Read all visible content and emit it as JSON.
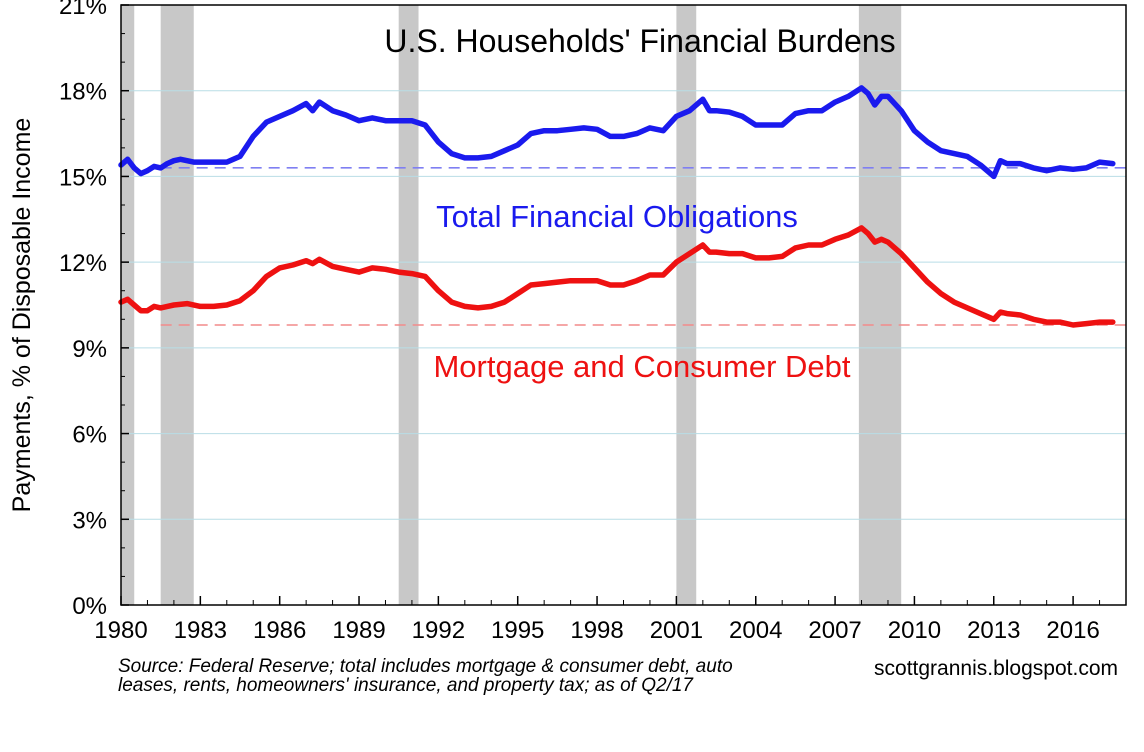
{
  "chart_data": {
    "type": "line",
    "title": "U.S. Households' Financial Burdens",
    "xlabel": "",
    "ylabel": "Payments, % of Disposable Income",
    "xlim": [
      1980,
      2018
    ],
    "ylim": [
      0,
      21
    ],
    "x_ticks": [
      1980,
      1983,
      1986,
      1989,
      1992,
      1995,
      1998,
      2001,
      2004,
      2007,
      2010,
      2013,
      2016
    ],
    "y_ticks": [
      0,
      3,
      6,
      9,
      12,
      15,
      18,
      21
    ],
    "y_tick_labels": [
      "0%",
      "3%",
      "6%",
      "9%",
      "12%",
      "15%",
      "18%",
      "21%"
    ],
    "grid": true,
    "recessions": [
      [
        1980.0,
        1980.5
      ],
      [
        1981.5,
        1982.75
      ],
      [
        1990.5,
        1991.25
      ],
      [
        2001.0,
        2001.75
      ],
      [
        2007.9,
        2009.5
      ]
    ],
    "series": [
      {
        "name": "Total Financial Obligations",
        "color": "#1a1aee",
        "reference_level": 15.3,
        "x": [
          1980.0,
          1980.25,
          1980.5,
          1980.75,
          1981.0,
          1981.25,
          1981.5,
          1981.75,
          1982.0,
          1982.25,
          1982.5,
          1982.75,
          1983.0,
          1983.5,
          1984.0,
          1984.5,
          1985.0,
          1985.5,
          1986.0,
          1986.5,
          1987.0,
          1987.25,
          1987.5,
          1988.0,
          1988.5,
          1989.0,
          1989.5,
          1990.0,
          1990.5,
          1991.0,
          1991.5,
          1992.0,
          1992.5,
          1993.0,
          1993.5,
          1994.0,
          1994.5,
          1995.0,
          1995.5,
          1996.0,
          1996.5,
          1997.0,
          1997.5,
          1998.0,
          1998.5,
          1999.0,
          1999.5,
          2000.0,
          2000.5,
          2001.0,
          2001.5,
          2002.0,
          2002.25,
          2002.5,
          2003.0,
          2003.5,
          2004.0,
          2004.5,
          2005.0,
          2005.5,
          2006.0,
          2006.5,
          2007.0,
          2007.5,
          2008.0,
          2008.25,
          2008.5,
          2008.75,
          2009.0,
          2009.5,
          2010.0,
          2010.5,
          2011.0,
          2011.5,
          2012.0,
          2012.5,
          2013.0,
          2013.25,
          2013.5,
          2014.0,
          2014.5,
          2015.0,
          2015.5,
          2016.0,
          2016.5,
          2017.0,
          2017.5
        ],
        "values": [
          15.4,
          15.6,
          15.3,
          15.1,
          15.2,
          15.35,
          15.3,
          15.45,
          15.55,
          15.6,
          15.55,
          15.5,
          15.5,
          15.5,
          15.5,
          15.7,
          16.4,
          16.9,
          17.1,
          17.3,
          17.55,
          17.3,
          17.6,
          17.3,
          17.15,
          16.95,
          17.05,
          16.95,
          16.95,
          16.95,
          16.8,
          16.2,
          15.8,
          15.65,
          15.65,
          15.7,
          15.9,
          16.1,
          16.5,
          16.6,
          16.6,
          16.65,
          16.7,
          16.65,
          16.4,
          16.4,
          16.5,
          16.7,
          16.6,
          17.1,
          17.3,
          17.7,
          17.3,
          17.3,
          17.25,
          17.1,
          16.8,
          16.8,
          16.8,
          17.2,
          17.3,
          17.3,
          17.6,
          17.8,
          18.1,
          17.9,
          17.5,
          17.8,
          17.8,
          17.3,
          16.6,
          16.2,
          15.9,
          15.8,
          15.7,
          15.4,
          15.0,
          15.55,
          15.45,
          15.45,
          15.3,
          15.2,
          15.3,
          15.25,
          15.3,
          15.5,
          15.45
        ]
      },
      {
        "name": "Mortgage and Consumer Debt",
        "color": "#ee1111",
        "reference_level": 9.8,
        "x": [
          1980.0,
          1980.25,
          1980.5,
          1980.75,
          1981.0,
          1981.25,
          1981.5,
          1981.75,
          1982.0,
          1982.5,
          1983.0,
          1983.5,
          1984.0,
          1984.5,
          1985.0,
          1985.5,
          1986.0,
          1986.5,
          1987.0,
          1987.25,
          1987.5,
          1988.0,
          1988.5,
          1989.0,
          1989.5,
          1990.0,
          1990.5,
          1991.0,
          1991.5,
          1992.0,
          1992.5,
          1993.0,
          1993.5,
          1994.0,
          1994.5,
          1995.0,
          1995.5,
          1996.0,
          1996.5,
          1997.0,
          1997.5,
          1998.0,
          1998.5,
          1999.0,
          1999.5,
          2000.0,
          2000.5,
          2001.0,
          2001.5,
          2002.0,
          2002.25,
          2002.5,
          2003.0,
          2003.5,
          2004.0,
          2004.5,
          2005.0,
          2005.5,
          2006.0,
          2006.5,
          2007.0,
          2007.5,
          2008.0,
          2008.25,
          2008.5,
          2008.75,
          2009.0,
          2009.5,
          2010.0,
          2010.5,
          2011.0,
          2011.5,
          2012.0,
          2012.5,
          2013.0,
          2013.25,
          2013.5,
          2014.0,
          2014.5,
          2015.0,
          2015.5,
          2016.0,
          2016.5,
          2017.0,
          2017.5
        ],
        "values": [
          10.6,
          10.7,
          10.5,
          10.3,
          10.3,
          10.45,
          10.4,
          10.45,
          10.5,
          10.55,
          10.45,
          10.45,
          10.5,
          10.65,
          11.0,
          11.5,
          11.8,
          11.9,
          12.05,
          11.95,
          12.1,
          11.85,
          11.75,
          11.65,
          11.8,
          11.75,
          11.65,
          11.6,
          11.5,
          11.0,
          10.6,
          10.45,
          10.4,
          10.45,
          10.6,
          10.9,
          11.2,
          11.25,
          11.3,
          11.35,
          11.35,
          11.35,
          11.2,
          11.2,
          11.35,
          11.55,
          11.55,
          12.0,
          12.3,
          12.6,
          12.35,
          12.35,
          12.3,
          12.3,
          12.15,
          12.15,
          12.2,
          12.5,
          12.6,
          12.6,
          12.8,
          12.95,
          13.2,
          13.0,
          12.7,
          12.8,
          12.7,
          12.3,
          11.8,
          11.3,
          10.9,
          10.6,
          10.4,
          10.2,
          10.0,
          10.25,
          10.2,
          10.15,
          10.0,
          9.9,
          9.9,
          9.8,
          9.85,
          9.9,
          9.9
        ]
      }
    ]
  },
  "source_note": "Source: Federal Reserve; total includes mortgage & consumer debt, auto leases, rents, homeowners' insurance, and property tax; as of Q2/17",
  "watermark": "scottgrannis.blogspot.com"
}
